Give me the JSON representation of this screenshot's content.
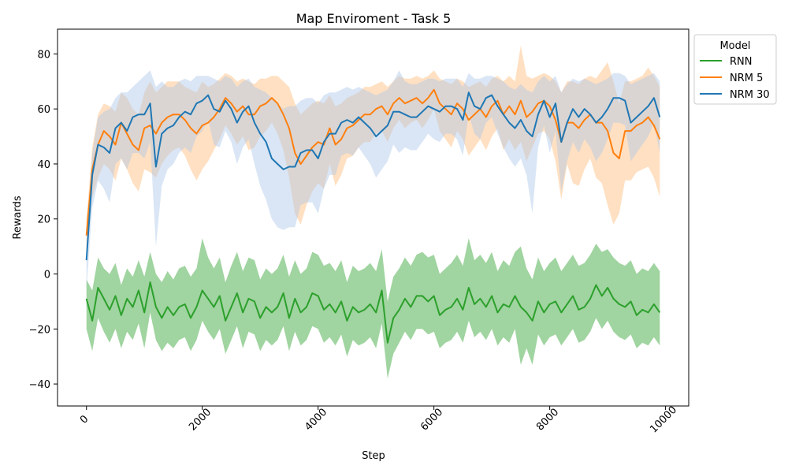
{
  "chart_data": {
    "type": "line",
    "title": "Map Enviroment - Task 5",
    "xlabel": "Step",
    "ylabel": "Rewards",
    "xlim": [
      -500,
      10400
    ],
    "ylim": [
      -48,
      89
    ],
    "xticks": [
      0,
      2000,
      4000,
      6000,
      8000,
      10000
    ],
    "xtick_labels": [
      "0",
      "2000",
      "4000",
      "6000",
      "8000",
      "10000"
    ],
    "yticks": [
      -40,
      -20,
      0,
      20,
      40,
      60,
      80
    ],
    "ytick_labels": [
      "−40",
      "−20",
      "0",
      "20",
      "40",
      "60",
      "80"
    ],
    "grid": false,
    "legend": {
      "title": "Model",
      "placement": "upper-left-outside"
    },
    "x": [
      0,
      100,
      200,
      300,
      400,
      500,
      600,
      700,
      800,
      900,
      1000,
      1100,
      1200,
      1300,
      1400,
      1500,
      1600,
      1700,
      1800,
      1900,
      2000,
      2100,
      2200,
      2300,
      2400,
      2500,
      2600,
      2700,
      2800,
      2900,
      3000,
      3100,
      3200,
      3300,
      3400,
      3500,
      3600,
      3700,
      3800,
      3900,
      4000,
      4100,
      4200,
      4300,
      4400,
      4500,
      4600,
      4700,
      4800,
      4900,
      5000,
      5100,
      5200,
      5300,
      5400,
      5500,
      5600,
      5700,
      5800,
      5900,
      6000,
      6100,
      6200,
      6300,
      6400,
      6500,
      6600,
      6700,
      6800,
      6900,
      7000,
      7100,
      7200,
      7300,
      7400,
      7500,
      7600,
      7700,
      7800,
      7900,
      8000,
      8100,
      8200,
      8300,
      8400,
      8500,
      8600,
      8700,
      8800,
      8900,
      9000,
      9100,
      9200,
      9300,
      9400,
      9500,
      9600,
      9700,
      9800,
      9900
    ],
    "series": [
      {
        "name": "RNN",
        "color": "#2ca02c",
        "band_color": "#2ca02c",
        "values": [
          -9,
          -17,
          -5,
          -9,
          -13,
          -8,
          -15,
          -9,
          -12,
          -6,
          -14,
          -3,
          -12,
          -16,
          -12,
          -15,
          -12,
          -11,
          -16,
          -12,
          -6,
          -9,
          -12,
          -8,
          -17,
          -12,
          -7,
          -14,
          -9,
          -10,
          -16,
          -12,
          -14,
          -12,
          -7,
          -16,
          -9,
          -14,
          -12,
          -7,
          -8,
          -13,
          -11,
          -14,
          -10,
          -17,
          -12,
          -14,
          -13,
          -11,
          -14,
          -6,
          -25,
          -16,
          -13,
          -9,
          -12,
          -8,
          -8,
          -10,
          -8,
          -15,
          -13,
          -12,
          -9,
          -13,
          -5,
          -11,
          -9,
          -12,
          -8,
          -14,
          -11,
          -12,
          -8,
          -12,
          -14,
          -17,
          -10,
          -14,
          -11,
          -10,
          -14,
          -11,
          -8,
          -13,
          -12,
          -9,
          -4,
          -8,
          -5,
          -9,
          -11,
          -12,
          -10,
          -15,
          -13,
          -14,
          -11,
          -14
        ],
        "upper": [
          -2,
          -6,
          6,
          2,
          0,
          4,
          -4,
          2,
          -1,
          5,
          -1,
          8,
          0,
          -3,
          1,
          -2,
          2,
          3,
          -1,
          2,
          13,
          6,
          2,
          6,
          -3,
          3,
          8,
          1,
          6,
          5,
          -2,
          2,
          0,
          2,
          7,
          -1,
          5,
          0,
          2,
          8,
          7,
          3,
          4,
          1,
          5,
          -3,
          3,
          1,
          2,
          4,
          1,
          9,
          -10,
          -1,
          2,
          6,
          3,
          7,
          8,
          6,
          7,
          0,
          2,
          4,
          7,
          3,
          13,
          5,
          7,
          4,
          8,
          1,
          5,
          3,
          8,
          10,
          2,
          -2,
          6,
          1,
          4,
          6,
          1,
          4,
          7,
          3,
          4,
          7,
          11,
          8,
          9,
          6,
          4,
          3,
          5,
          0,
          2,
          1,
          4,
          1
        ],
        "lower": [
          -20,
          -28,
          -16,
          -21,
          -25,
          -20,
          -27,
          -21,
          -24,
          -18,
          -27,
          -14,
          -24,
          -28,
          -25,
          -27,
          -24,
          -23,
          -28,
          -24,
          -17,
          -21,
          -24,
          -20,
          -29,
          -24,
          -19,
          -27,
          -21,
          -22,
          -28,
          -24,
          -26,
          -24,
          -19,
          -28,
          -21,
          -26,
          -24,
          -19,
          -20,
          -25,
          -23,
          -26,
          -22,
          -30,
          -24,
          -26,
          -25,
          -23,
          -27,
          -18,
          -38,
          -29,
          -25,
          -21,
          -24,
          -20,
          -20,
          -22,
          -21,
          -27,
          -25,
          -24,
          -21,
          -25,
          -17,
          -23,
          -21,
          -24,
          -20,
          -26,
          -23,
          -25,
          -20,
          -33,
          -27,
          -33,
          -22,
          -26,
          -23,
          -22,
          -26,
          -23,
          -20,
          -25,
          -24,
          -21,
          -16,
          -20,
          -17,
          -21,
          -23,
          -24,
          -22,
          -27,
          -25,
          -26,
          -23,
          -26
        ]
      },
      {
        "name": "NRM 5",
        "color": "#ff7f0e",
        "band_color": "#ffbb78",
        "values": [
          14,
          38,
          47,
          52,
          50,
          47,
          55,
          51,
          47,
          45,
          53,
          54,
          51,
          55,
          57,
          58,
          58,
          56,
          53,
          51,
          54,
          55,
          57,
          60,
          64,
          62,
          59,
          61,
          58,
          58,
          61,
          62,
          64,
          62,
          58,
          53,
          44,
          40,
          43,
          46,
          48,
          47,
          53,
          47,
          49,
          53,
          54,
          56,
          58,
          58,
          60,
          61,
          58,
          62,
          64,
          62,
          63,
          64,
          62,
          64,
          67,
          62,
          60,
          58,
          62,
          60,
          56,
          58,
          60,
          57,
          61,
          63,
          58,
          61,
          58,
          63,
          57,
          59,
          62,
          63,
          61,
          56,
          48,
          55,
          55,
          53,
          56,
          58,
          55,
          55,
          52,
          44,
          42,
          52,
          52,
          54,
          55,
          57,
          54,
          49
        ],
        "upper": [
          20,
          46,
          58,
          62,
          61,
          59,
          66,
          64,
          60,
          58,
          66,
          70,
          66,
          68,
          70,
          70,
          70,
          68,
          67,
          66,
          70,
          68,
          69,
          71,
          73,
          72,
          70,
          71,
          70,
          69,
          71,
          71,
          72,
          72,
          70,
          68,
          62,
          58,
          60,
          62,
          63,
          62,
          65,
          61,
          62,
          64,
          65,
          66,
          68,
          68,
          69,
          70,
          68,
          70,
          72,
          71,
          71,
          72,
          71,
          72,
          74,
          71,
          70,
          69,
          71,
          70,
          68,
          69,
          70,
          68,
          71,
          72,
          70,
          72,
          70,
          83,
          72,
          71,
          72,
          73,
          72,
          70,
          66,
          70,
          70,
          69,
          71,
          72,
          71,
          74,
          77,
          70,
          62,
          70,
          70,
          71,
          72,
          75,
          72,
          68
        ],
        "lower": [
          8,
          28,
          35,
          40,
          38,
          34,
          42,
          38,
          33,
          30,
          38,
          37,
          35,
          40,
          43,
          45,
          46,
          43,
          38,
          34,
          38,
          41,
          45,
          49,
          54,
          51,
          47,
          50,
          45,
          46,
          50,
          52,
          55,
          51,
          45,
          35,
          22,
          18,
          25,
          30,
          33,
          31,
          40,
          32,
          36,
          42,
          43,
          46,
          48,
          48,
          51,
          52,
          48,
          53,
          56,
          53,
          55,
          56,
          53,
          56,
          60,
          52,
          49,
          46,
          52,
          49,
          43,
          46,
          49,
          45,
          50,
          53,
          45,
          49,
          45,
          48,
          41,
          46,
          51,
          52,
          49,
          41,
          27,
          40,
          33,
          32,
          38,
          42,
          35,
          33,
          25,
          18,
          22,
          34,
          34,
          37,
          38,
          39,
          35,
          28
        ]
      },
      {
        "name": "NRM 30",
        "color": "#1f77b4",
        "band_color": "#aec7e8",
        "values": [
          5,
          36,
          47,
          46,
          44,
          53,
          55,
          52,
          57,
          58,
          58,
          62,
          39,
          51,
          53,
          54,
          57,
          59,
          58,
          62,
          63,
          65,
          60,
          59,
          63,
          60,
          55,
          59,
          61,
          55,
          51,
          48,
          42,
          40,
          38,
          39,
          39,
          44,
          45,
          45,
          42,
          48,
          51,
          51,
          55,
          56,
          55,
          57,
          55,
          53,
          50,
          52,
          54,
          59,
          59,
          58,
          57,
          57,
          59,
          61,
          60,
          59,
          61,
          61,
          60,
          56,
          66,
          61,
          60,
          64,
          65,
          61,
          58,
          55,
          53,
          56,
          52,
          50,
          58,
          63,
          57,
          62,
          48,
          55,
          60,
          57,
          60,
          58,
          55,
          57,
          60,
          64,
          64,
          63,
          55,
          57,
          59,
          61,
          64,
          57
        ],
        "upper": [
          10,
          44,
          57,
          59,
          60,
          64,
          66,
          66,
          68,
          70,
          72,
          74,
          68,
          70,
          68,
          68,
          70,
          71,
          70,
          72,
          72,
          72,
          71,
          70,
          72,
          71,
          68,
          70,
          71,
          68,
          67,
          66,
          64,
          62,
          60,
          61,
          61,
          63,
          64,
          64,
          62,
          65,
          66,
          66,
          67,
          68,
          67,
          68,
          67,
          66,
          65,
          66,
          67,
          70,
          74,
          70,
          69,
          69,
          70,
          71,
          71,
          70,
          71,
          71,
          71,
          68,
          73,
          71,
          71,
          72,
          72,
          71,
          70,
          68,
          67,
          69,
          67,
          66,
          70,
          72,
          70,
          72,
          66,
          69,
          71,
          70,
          71,
          70,
          69,
          70,
          71,
          73,
          73,
          72,
          69,
          70,
          71,
          72,
          73,
          70
        ],
        "lower": [
          -6,
          24,
          34,
          31,
          26,
          40,
          42,
          38,
          44,
          44,
          42,
          48,
          10,
          32,
          38,
          40,
          44,
          46,
          44,
          50,
          52,
          56,
          47,
          46,
          52,
          48,
          40,
          46,
          49,
          40,
          32,
          27,
          20,
          17,
          16,
          17,
          17,
          25,
          26,
          26,
          22,
          31,
          36,
          36,
          43,
          44,
          43,
          46,
          43,
          40,
          35,
          38,
          41,
          47,
          44,
          46,
          45,
          45,
          48,
          51,
          49,
          48,
          51,
          51,
          49,
          43,
          58,
          51,
          49,
          55,
          57,
          51,
          46,
          42,
          39,
          42,
          36,
          22,
          46,
          54,
          44,
          52,
          30,
          41,
          48,
          44,
          49,
          46,
          41,
          44,
          49,
          55,
          55,
          54,
          41,
          44,
          47,
          50,
          55,
          44
        ]
      }
    ]
  }
}
